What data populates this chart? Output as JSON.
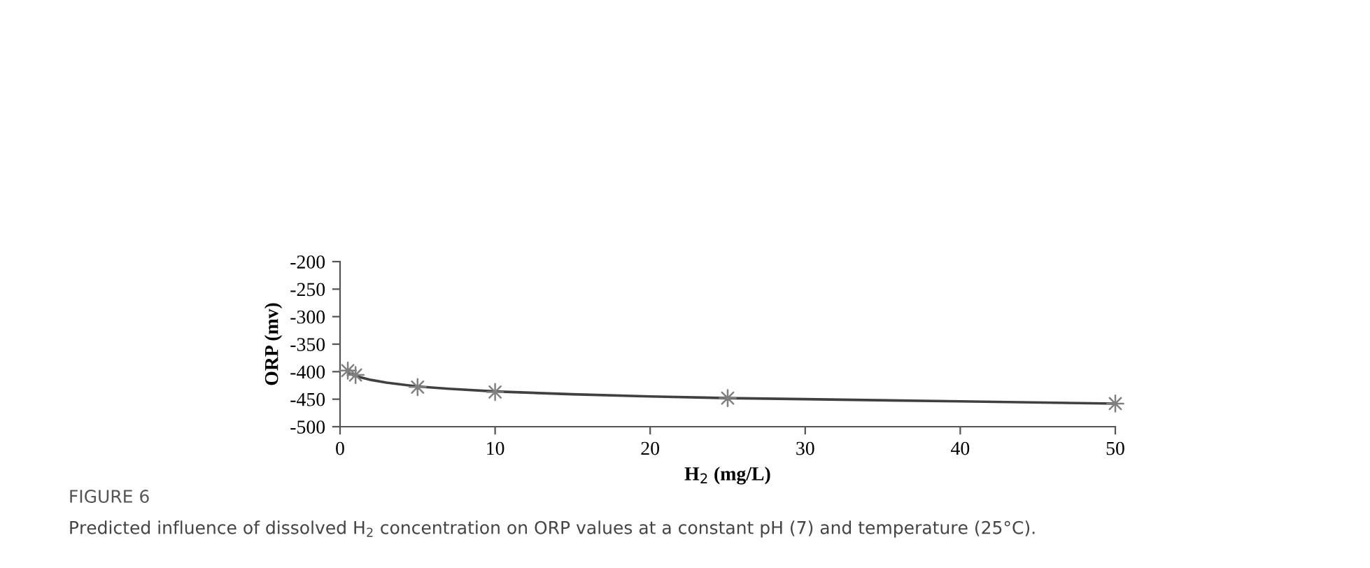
{
  "chart_data": {
    "type": "scatter",
    "xlabel": "H$_{2}$ (mg/L)",
    "ylabel": "ORP (mv)",
    "annotations": [
      "FIGURE 6",
      "Predicted influence of dissolved H$_{2}$ concentration on ORP values at a constant pH (7) and temperature (25°C)."
    ],
    "series": [
      {
        "color": "#808080",
        "marker": "star",
        "x": [
          0.5,
          1,
          5,
          10,
          25,
          50
        ],
        "values": [
          -398,
          -406,
          -428,
          -437,
          -448,
          -458
        ]
      },
      {
        "type": "line",
        "color": "#404040",
        "marker": "none",
        "line_style": "solid",
        "x": [
          0.5,
          1,
          2,
          3,
          5,
          7,
          10,
          15,
          20,
          25,
          30,
          40,
          50
        ],
        "values": [
          -401,
          -408,
          -415,
          -420,
          -427,
          -431,
          -436,
          -441,
          -445,
          -448,
          -450,
          -454,
          -458
        ]
      }
    ],
    "xlim": [
      0,
      50
    ],
    "xticks": [
      0,
      10,
      20,
      30,
      40,
      50
    ],
    "ylim": [
      -500,
      -200
    ],
    "yticks": [
      -500,
      -450,
      -400,
      -350,
      -300,
      -250,
      -200
    ],
    "grid": false,
    "legend": false
  }
}
